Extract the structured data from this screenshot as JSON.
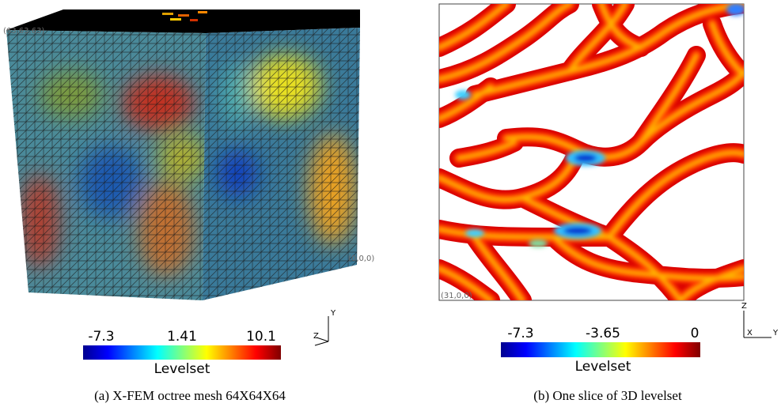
{
  "panels": [
    {
      "caption": "(a) X-FEM octree mesh 64X64X64",
      "corner_labels": [
        "(63,63,63)",
        "(0,0,0)"
      ],
      "axis_labels": [
        "Y",
        "Z"
      ],
      "colorbar": {
        "title": "Levelset",
        "ticks": [
          "-7.3",
          "1.41",
          "10.1"
        ]
      }
    },
    {
      "caption": "(b) One slice of 3D levelset",
      "corner_labels": [
        "(31,0,0)"
      ],
      "axis_labels": [
        "Z",
        "X",
        "Y"
      ],
      "colorbar": {
        "title": "Levelset",
        "ticks": [
          "-7.3",
          "-3.65",
          "0"
        ]
      }
    }
  ]
}
